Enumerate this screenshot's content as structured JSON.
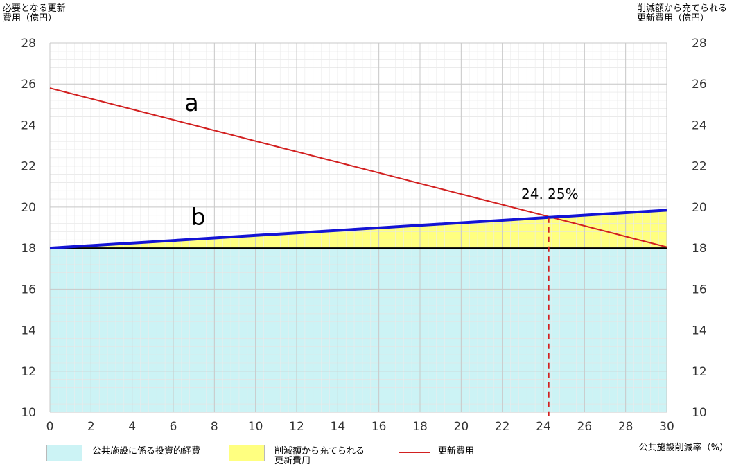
{
  "chart_data": {
    "type": "area",
    "xlabel": "公共施設削減率（%）",
    "ylabel_left": "必要となる更新\n費用（億円）",
    "ylabel_right": "削減額から充てられる\n更新費用（億円）",
    "xlim": [
      0,
      30
    ],
    "ylim": [
      10,
      28
    ],
    "x_ticks": [
      0,
      2,
      4,
      6,
      8,
      10,
      12,
      14,
      16,
      18,
      20,
      22,
      24,
      26,
      28,
      30
    ],
    "y_ticks": [
      10,
      12,
      14,
      16,
      18,
      20,
      22,
      24,
      26,
      28
    ],
    "grid": true,
    "series": [
      {
        "name": "公共施設に係る投資的経費",
        "kind": "area",
        "color": "#ccf3f5",
        "points": [
          [
            0,
            18
          ],
          [
            30,
            18
          ]
        ]
      },
      {
        "name": "削減額から充てられる更新費用",
        "kind": "area",
        "color": "#ffff80",
        "points": [
          [
            0,
            18
          ],
          [
            30,
            19.85
          ]
        ]
      },
      {
        "name": "更新費用",
        "kind": "line",
        "color": "#d22020",
        "points": [
          [
            0,
            25.8
          ],
          [
            30,
            18.05
          ]
        ]
      }
    ],
    "b_line": {
      "color": "#1414d4",
      "points": [
        [
          0,
          18
        ],
        [
          30,
          19.85
        ]
      ]
    },
    "baseline": {
      "y": 18,
      "color": "#000000"
    },
    "annotations": {
      "a_label": "a",
      "b_label": "b",
      "crossing_label": "24. 25%",
      "crossing_x": 24.25,
      "crossing_y": 19.5
    },
    "legend": [
      {
        "label": "公共施設に係る投資的経費",
        "swatch": "#ccf3f5"
      },
      {
        "label": "削減額から充てられる\n更新費用",
        "swatch": "#ffff80"
      },
      {
        "label": "更新費用",
        "line": "#d22020"
      }
    ]
  }
}
